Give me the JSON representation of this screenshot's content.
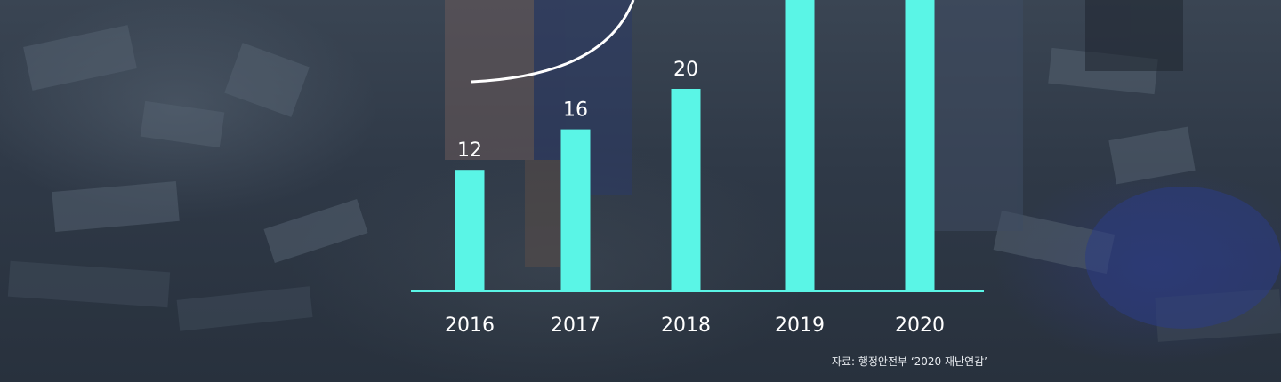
{
  "chart_data": {
    "type": "bar",
    "categories": [
      "2016",
      "2017",
      "2018",
      "2019",
      "2020"
    ],
    "values": [
      12,
      16,
      20,
      null,
      null
    ],
    "data_labels": [
      "12",
      "16",
      "20",
      "",
      ""
    ],
    "xlabel": "",
    "ylabel": "",
    "grid": false,
    "bar_color": "#5af5e6"
  },
  "source": "자료: 행정안전부 ‘2020 재난연감’",
  "colors": {
    "bar": "#5af5e6",
    "text": "#ffffff",
    "background": "#2f3947"
  }
}
